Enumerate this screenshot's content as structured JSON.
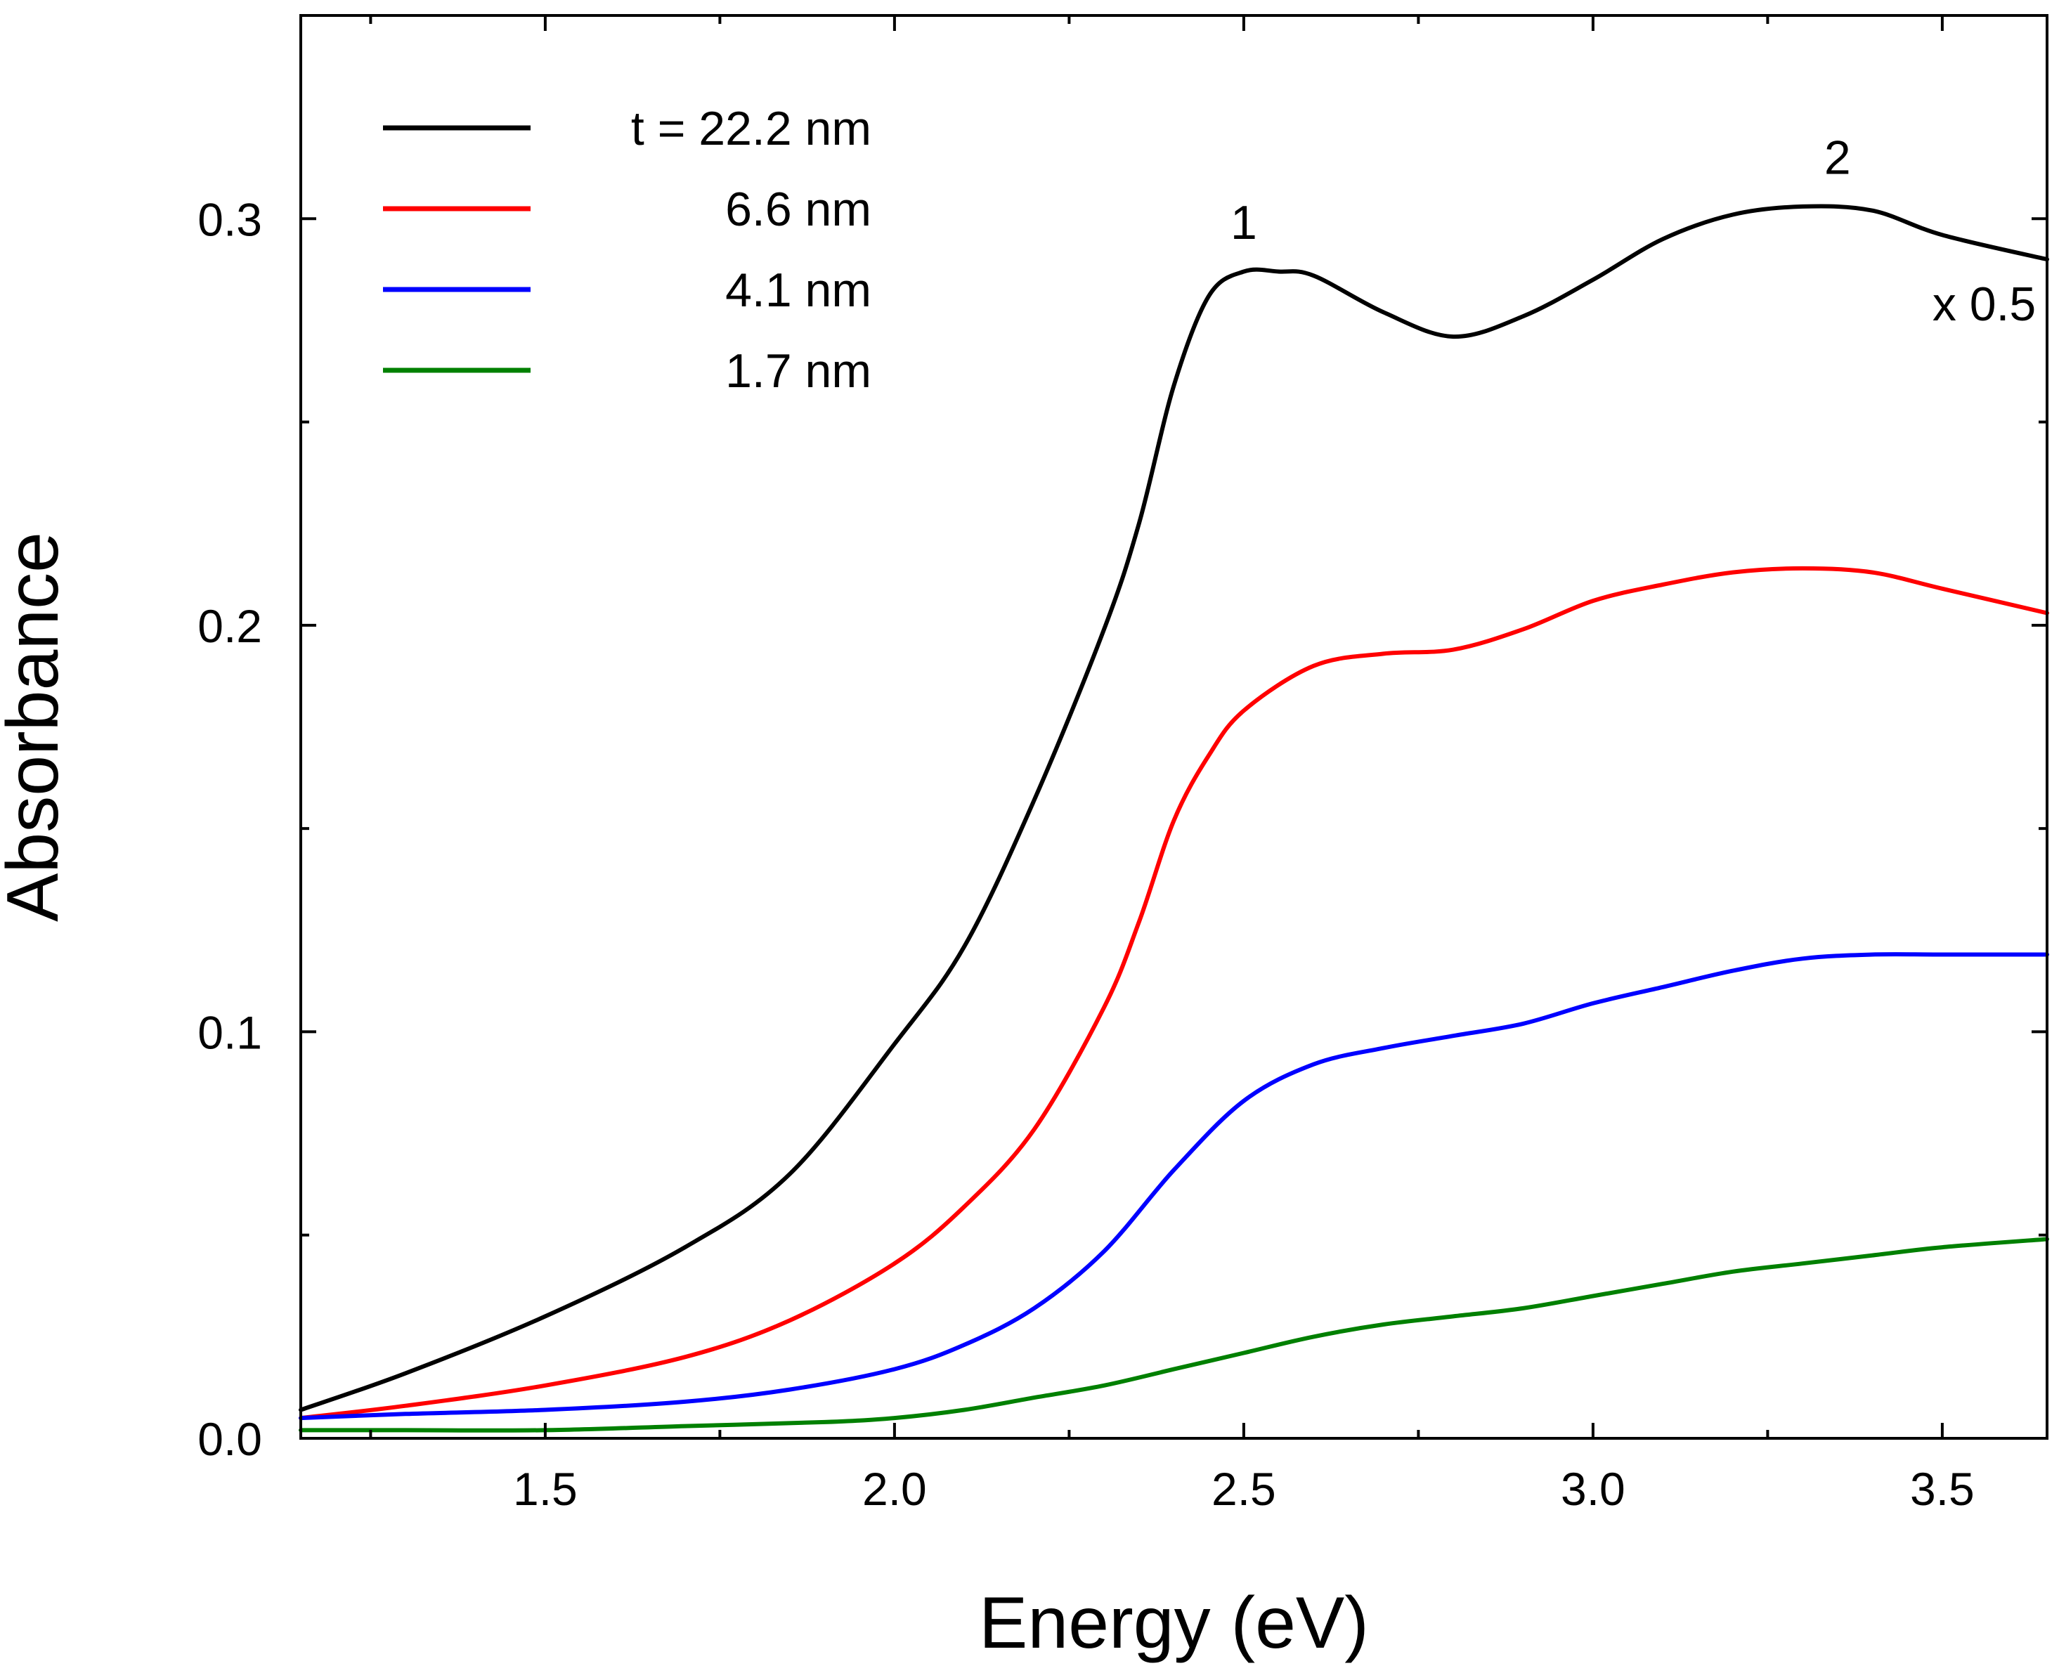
{
  "chart_data": {
    "type": "line",
    "title": "",
    "xlabel": "Energy (eV)",
    "ylabel": "Absorbance",
    "xlim": [
      1.15,
      3.65
    ],
    "ylim": [
      0.0,
      0.35
    ],
    "grid": false,
    "legend_position": "top-left",
    "xticks": [
      {
        "value": 1.5,
        "label": "1.5"
      },
      {
        "value": 2.0,
        "label": "2.0"
      },
      {
        "value": 2.5,
        "label": "2.5"
      },
      {
        "value": 3.0,
        "label": "3.0"
      },
      {
        "value": 3.5,
        "label": "3.5"
      }
    ],
    "yticks": [
      {
        "value": 0.0,
        "label": "0.0"
      },
      {
        "value": 0.1,
        "label": "0.1"
      },
      {
        "value": 0.2,
        "label": "0.2"
      },
      {
        "value": 0.3,
        "label": "0.3"
      }
    ],
    "annotations": [
      {
        "text": "1",
        "x": 2.5,
        "y": 0.295
      },
      {
        "text": "2",
        "x": 3.35,
        "y": 0.311
      },
      {
        "text": "x 0.5",
        "x": 3.56,
        "y": 0.275
      }
    ],
    "series": [
      {
        "name": "t = 22.2 nm",
        "color": "#000000",
        "x": [
          1.15,
          1.3,
          1.5,
          1.7,
          1.85,
          2.0,
          2.1,
          2.2,
          2.3,
          2.35,
          2.4,
          2.45,
          2.5,
          2.55,
          2.6,
          2.7,
          2.8,
          2.9,
          3.0,
          3.1,
          3.2,
          3.3,
          3.4,
          3.5,
          3.65
        ],
        "y": [
          0.007,
          0.016,
          0.03,
          0.047,
          0.065,
          0.097,
          0.121,
          0.157,
          0.199,
          0.225,
          0.259,
          0.281,
          0.287,
          0.287,
          0.286,
          0.277,
          0.271,
          0.276,
          0.285,
          0.295,
          0.301,
          0.303,
          0.302,
          0.296,
          0.29
        ]
      },
      {
        "name": "6.6 nm",
        "color": "#ff0000",
        "x": [
          1.15,
          1.3,
          1.5,
          1.7,
          1.85,
          2.0,
          2.1,
          2.2,
          2.3,
          2.35,
          2.4,
          2.45,
          2.5,
          2.6,
          2.7,
          2.8,
          2.9,
          3.0,
          3.1,
          3.2,
          3.3,
          3.4,
          3.5,
          3.65
        ],
        "y": [
          0.005,
          0.008,
          0.013,
          0.02,
          0.029,
          0.043,
          0.057,
          0.076,
          0.106,
          0.127,
          0.152,
          0.168,
          0.179,
          0.19,
          0.193,
          0.194,
          0.199,
          0.206,
          0.21,
          0.213,
          0.214,
          0.213,
          0.209,
          0.203
        ]
      },
      {
        "name": "4.1 nm",
        "color": "#0000ff",
        "x": [
          1.15,
          1.3,
          1.5,
          1.7,
          1.85,
          2.0,
          2.1,
          2.2,
          2.3,
          2.4,
          2.5,
          2.6,
          2.7,
          2.8,
          2.9,
          3.0,
          3.1,
          3.2,
          3.3,
          3.4,
          3.5,
          3.65
        ],
        "y": [
          0.005,
          0.006,
          0.007,
          0.009,
          0.012,
          0.017,
          0.023,
          0.032,
          0.046,
          0.066,
          0.083,
          0.092,
          0.096,
          0.099,
          0.102,
          0.107,
          0.111,
          0.115,
          0.118,
          0.119,
          0.119,
          0.119
        ]
      },
      {
        "name": "1.7 nm",
        "color": "#008000",
        "x": [
          1.15,
          1.3,
          1.5,
          1.7,
          1.9,
          2.0,
          2.1,
          2.2,
          2.3,
          2.4,
          2.5,
          2.6,
          2.7,
          2.8,
          2.9,
          3.0,
          3.1,
          3.2,
          3.3,
          3.4,
          3.5,
          3.65
        ],
        "y": [
          0.002,
          0.002,
          0.002,
          0.003,
          0.004,
          0.005,
          0.007,
          0.01,
          0.013,
          0.017,
          0.021,
          0.025,
          0.028,
          0.03,
          0.032,
          0.035,
          0.038,
          0.041,
          0.043,
          0.045,
          0.047,
          0.049
        ]
      }
    ]
  }
}
